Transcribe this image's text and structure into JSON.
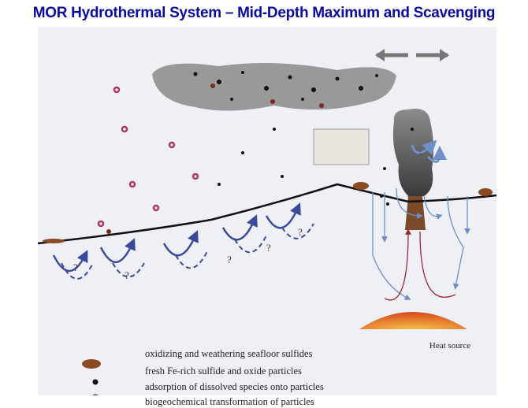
{
  "title": "MOR Hydrothermal System – Mid-Depth Maximum and Scavenging",
  "diagram": {
    "heat_source_label": "Heat source",
    "question_mark": "?",
    "colors": {
      "title": "#0a0a9c",
      "plume": "#7a7a7a",
      "seafloor": "#111111",
      "downwelling": "#3a4a9a",
      "recharge": "#6f8fc8",
      "discharge": "#9c2a35",
      "sulfide": "#8a4a22",
      "heat_source": "#d9531e"
    }
  },
  "legend": {
    "items": [
      {
        "icon": "weathered-sulfide-icon",
        "label": "oxidizing and weathering seafloor sulfides"
      },
      {
        "icon": "black-particle-icon",
        "label": "fresh Fe-rich sulfide and oxide particles"
      },
      {
        "icon": "ringed-particle-icon",
        "label": "adsorption of dissolved species onto particles"
      },
      {
        "icon": "brown-particle-icon",
        "label": "biogeochemical transformation of particles"
      }
    ]
  }
}
